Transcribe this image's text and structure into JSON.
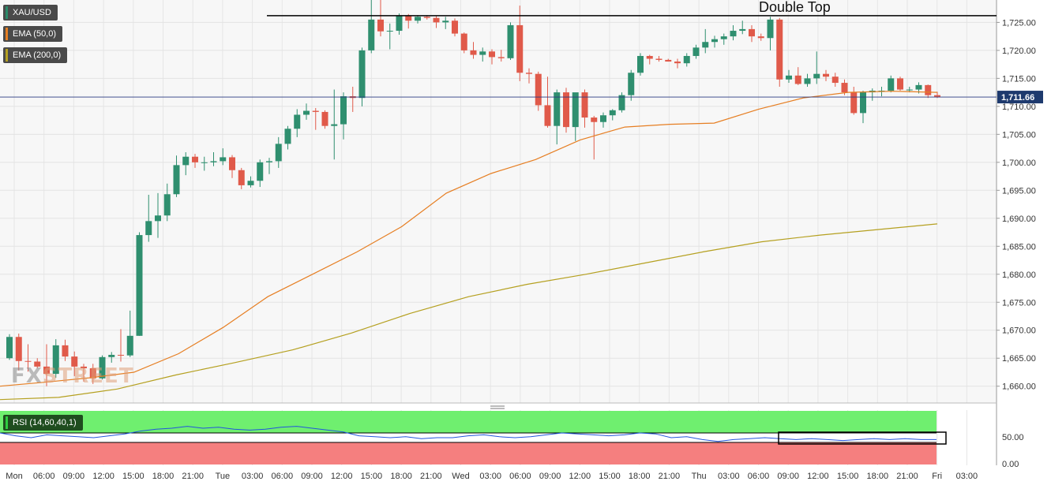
{
  "chart_data": {
    "type": "candlestick",
    "symbol": "XAU/USD",
    "indicators": [
      {
        "name": "EMA (50,0)",
        "color": "#e67e22"
      },
      {
        "name": "EMA (200,0)",
        "color": "#b5a020"
      }
    ],
    "annotation": "Double Top",
    "last_price": "1,711.66",
    "ylim": [
      1657,
      1729
    ],
    "y_ticks": [
      "1,660.00",
      "1,665.00",
      "1,670.00",
      "1,675.00",
      "1,680.00",
      "1,685.00",
      "1,690.00",
      "1,695.00",
      "1,700.00",
      "1,705.00",
      "1,710.00",
      "1,715.00",
      "1,720.00",
      "1,725.00"
    ],
    "x_ticks": [
      "Mon",
      "06:00",
      "09:00",
      "12:00",
      "15:00",
      "18:00",
      "21:00",
      "Tue",
      "03:00",
      "06:00",
      "09:00",
      "12:00",
      "15:00",
      "18:00",
      "21:00",
      "Wed",
      "03:00",
      "06:00",
      "09:00",
      "12:00",
      "15:00",
      "18:00",
      "21:00",
      "Thu",
      "03:00",
      "06:00",
      "09:00",
      "12:00",
      "15:00",
      "18:00",
      "21:00",
      "Fri",
      "03:00"
    ],
    "candles": [
      [
        1665.0,
        1669.3,
        1664.7,
        1668.8
      ],
      [
        1668.8,
        1669.4,
        1662.8,
        1664.5
      ],
      [
        1664.5,
        1667.5,
        1662.6,
        1664.4
      ],
      [
        1664.4,
        1665.0,
        1663.2,
        1663.5
      ],
      [
        1663.5,
        1667.5,
        1660.0,
        1662.2
      ],
      [
        1662.2,
        1668.4,
        1661.5,
        1667.3
      ],
      [
        1667.3,
        1668.3,
        1664.5,
        1665.3
      ],
      [
        1665.3,
        1666.2,
        1661.8,
        1663.5
      ],
      [
        1663.5,
        1664.0,
        1660.8,
        1663.2
      ],
      [
        1663.2,
        1664.0,
        1660.4,
        1661.4
      ],
      [
        1661.4,
        1665.5,
        1661.2,
        1665.2
      ],
      [
        1665.2,
        1666.1,
        1664.2,
        1665.6
      ],
      [
        1665.6,
        1670.2,
        1664.4,
        1665.5
      ],
      [
        1665.5,
        1673.5,
        1665.2,
        1669.0
      ],
      [
        1669.0,
        1687.5,
        1669.0,
        1687.0
      ],
      [
        1687.0,
        1694.2,
        1685.8,
        1689.5
      ],
      [
        1689.5,
        1694.5,
        1686.5,
        1690.5
      ],
      [
        1690.5,
        1696.2,
        1689.5,
        1694.3
      ],
      [
        1694.3,
        1701.2,
        1693.8,
        1699.5
      ],
      [
        1699.5,
        1701.8,
        1697.7,
        1701.0
      ],
      [
        1701.0,
        1701.5,
        1699.0,
        1700.0
      ],
      [
        1700.0,
        1701.0,
        1698.5,
        1700.0
      ],
      [
        1700.0,
        1701.8,
        1699.3,
        1700.2
      ],
      [
        1700.2,
        1702.5,
        1699.5,
        1700.9
      ],
      [
        1700.9,
        1701.3,
        1697.2,
        1698.6
      ],
      [
        1698.6,
        1699.0,
        1695.2,
        1695.9
      ],
      [
        1695.9,
        1697.5,
        1695.5,
        1696.7
      ],
      [
        1696.7,
        1700.5,
        1695.6,
        1700.0
      ],
      [
        1700.0,
        1700.8,
        1697.9,
        1700.2
      ],
      [
        1700.2,
        1704.5,
        1699.0,
        1703.3
      ],
      [
        1703.3,
        1706.5,
        1702.3,
        1706.0
      ],
      [
        1706.0,
        1709.5,
        1704.5,
        1708.5
      ],
      [
        1708.5,
        1710.5,
        1707.6,
        1709.2
      ],
      [
        1709.2,
        1709.7,
        1705.8,
        1709.0
      ],
      [
        1709.0,
        1709.3,
        1706.0,
        1706.5
      ],
      [
        1706.5,
        1713.0,
        1700.5,
        1706.8
      ],
      [
        1706.8,
        1712.5,
        1704.1,
        1711.8
      ],
      [
        1711.8,
        1713.5,
        1709.0,
        1711.5
      ],
      [
        1711.5,
        1720.5,
        1710.0,
        1720.0
      ],
      [
        1720.0,
        1729.3,
        1719.5,
        1725.5
      ],
      [
        1725.5,
        1729.0,
        1722.5,
        1723.4
      ],
      [
        1723.4,
        1724.8,
        1720.2,
        1723.5
      ],
      [
        1723.5,
        1726.6,
        1722.8,
        1726.2
      ],
      [
        1726.2,
        1726.5,
        1723.9,
        1725.3
      ],
      [
        1725.3,
        1726.3,
        1724.8,
        1726.0
      ],
      [
        1726.0,
        1726.3,
        1725.5,
        1725.8
      ],
      [
        1725.8,
        1726.1,
        1724.0,
        1725.0
      ],
      [
        1725.0,
        1726.0,
        1723.8,
        1725.3
      ],
      [
        1725.3,
        1725.7,
        1722.5,
        1723.0
      ],
      [
        1723.0,
        1723.2,
        1719.5,
        1720.0
      ],
      [
        1720.0,
        1721.5,
        1718.5,
        1719.2
      ],
      [
        1719.2,
        1720.5,
        1718.0,
        1719.8
      ],
      [
        1719.8,
        1720.2,
        1717.5,
        1718.8
      ],
      [
        1718.8,
        1720.1,
        1718.0,
        1718.6
      ],
      [
        1718.6,
        1725.0,
        1718.3,
        1724.5
      ],
      [
        1724.5,
        1728.0,
        1714.5,
        1716.0
      ],
      [
        1716.0,
        1716.8,
        1714.1,
        1715.8
      ],
      [
        1715.8,
        1716.2,
        1709.2,
        1710.2
      ],
      [
        1710.2,
        1715.3,
        1706.2,
        1706.5
      ],
      [
        1706.5,
        1713.0,
        1703.2,
        1712.5
      ],
      [
        1712.5,
        1713.3,
        1705.3,
        1706.3
      ],
      [
        1706.3,
        1712.0,
        1703.8,
        1712.5
      ],
      [
        1712.5,
        1713.0,
        1706.2,
        1708.0
      ],
      [
        1708.0,
        1708.3,
        1700.5,
        1707.2
      ],
      [
        1707.2,
        1708.9,
        1706.2,
        1708.4
      ],
      [
        1708.4,
        1709.5,
        1707.5,
        1709.3
      ],
      [
        1709.3,
        1712.5,
        1708.9,
        1712.0
      ],
      [
        1712.0,
        1716.5,
        1711.0,
        1716.0
      ],
      [
        1716.0,
        1719.5,
        1715.5,
        1719.0
      ],
      [
        1719.0,
        1719.2,
        1717.5,
        1718.5
      ],
      [
        1718.5,
        1719.0,
        1718.0,
        1718.3
      ],
      [
        1718.3,
        1718.5,
        1718.0,
        1718.0
      ],
      [
        1718.0,
        1718.5,
        1716.8,
        1717.7
      ],
      [
        1717.7,
        1719.5,
        1717.1,
        1719.0
      ],
      [
        1719.0,
        1721.0,
        1718.5,
        1720.5
      ],
      [
        1720.5,
        1723.8,
        1719.5,
        1721.5
      ],
      [
        1721.5,
        1722.6,
        1720.5,
        1722.0
      ],
      [
        1722.0,
        1723.0,
        1721.0,
        1722.5
      ],
      [
        1722.5,
        1724.5,
        1721.8,
        1723.5
      ],
      [
        1723.5,
        1725.3,
        1722.9,
        1723.8
      ],
      [
        1723.8,
        1724.5,
        1721.5,
        1722.5
      ],
      [
        1722.5,
        1723.0,
        1721.7,
        1722.2
      ],
      [
        1722.2,
        1726.0,
        1720.0,
        1725.5
      ],
      [
        1725.5,
        1725.8,
        1713.5,
        1714.8
      ],
      [
        1714.8,
        1716.5,
        1714.2,
        1715.5
      ],
      [
        1715.5,
        1717.0,
        1713.8,
        1714.0
      ],
      [
        1714.0,
        1715.8,
        1713.5,
        1715.0
      ],
      [
        1715.0,
        1719.8,
        1714.0,
        1715.8
      ],
      [
        1715.8,
        1716.5,
        1714.5,
        1715.3
      ],
      [
        1715.3,
        1716.0,
        1713.5,
        1714.2
      ],
      [
        1714.2,
        1714.8,
        1712.0,
        1712.5
      ],
      [
        1712.5,
        1713.5,
        1708.5,
        1708.8
      ],
      [
        1708.8,
        1712.8,
        1707.0,
        1712.5
      ],
      [
        1712.5,
        1713.2,
        1711.0,
        1712.8
      ],
      [
        1712.8,
        1713.5,
        1711.8,
        1712.8
      ],
      [
        1712.8,
        1715.5,
        1712.5,
        1715.0
      ],
      [
        1715.0,
        1715.3,
        1712.8,
        1713.0
      ],
      [
        1713.0,
        1713.5,
        1712.5,
        1713.0
      ],
      [
        1713.0,
        1714.3,
        1712.3,
        1713.8
      ],
      [
        1713.8,
        1713.9,
        1711.5,
        1712.0
      ],
      [
        1712.0,
        1712.6,
        1711.5,
        1711.7
      ]
    ],
    "ema50": [
      1660.0,
      1660.7,
      1661.5,
      1662.5,
      1665.8,
      1670.5,
      1676.0,
      1680.0,
      1684.0,
      1688.5,
      1694.5,
      1698.0,
      1700.5,
      1704.0,
      1706.3,
      1706.8,
      1707.0,
      1709.5,
      1711.5,
      1712.5,
      1712.7,
      1712.5
    ],
    "ema200": [
      1657.6,
      1658.0,
      1659.5,
      1662.0,
      1664.2,
      1666.5,
      1669.5,
      1673.0,
      1676.0,
      1678.2,
      1680.0,
      1682.0,
      1684.0,
      1685.8,
      1687.0,
      1688.0,
      1689.0
    ],
    "rsi": {
      "label": "RSI (14,60,40,1)",
      "upper": 60,
      "lower": 40,
      "y_ticks": [
        "50.00",
        "0.00"
      ],
      "values": [
        55,
        52,
        50,
        53,
        52,
        51,
        50,
        52,
        54,
        57,
        59,
        60,
        62,
        60,
        61,
        59,
        58,
        59,
        61,
        62,
        60,
        58,
        56,
        52,
        51,
        50,
        51,
        49,
        50,
        50,
        52,
        53,
        51,
        50,
        51,
        53,
        55,
        54,
        53,
        52,
        53,
        55,
        54,
        50,
        51,
        48,
        46,
        48,
        49,
        50,
        49,
        48,
        49,
        48,
        47,
        48,
        49,
        48,
        49,
        48,
        48
      ]
    }
  }
}
